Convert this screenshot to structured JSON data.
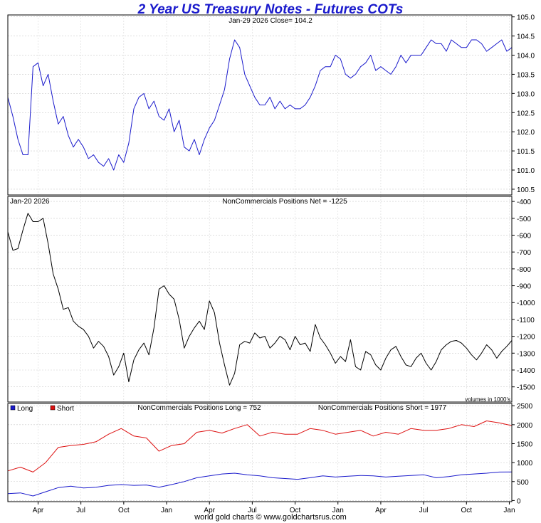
{
  "title": "2 Year US Treasury Notes - Futures COTs",
  "footer": "world gold charts © www.goldchartsrus.com",
  "chart_data": [
    {
      "type": "line",
      "panel": "price",
      "header": "Jan-29  2026   Close= 104.2",
      "ylim": [
        100.35,
        105.05
      ],
      "yticks": [
        105.0,
        104.5,
        104.0,
        103.5,
        103.0,
        102.5,
        102.0,
        101.5,
        101.0,
        100.5
      ],
      "ytick_labels": [
        "105.0",
        "104.5",
        "104.0",
        "103.5",
        "103.0",
        "102.5",
        "102.0",
        "101.5",
        "101.0",
        "100.5"
      ],
      "color": "#1a1acc",
      "x": [
        0,
        0.01,
        0.02,
        0.03,
        0.04,
        0.05,
        0.06,
        0.07,
        0.08,
        0.09,
        0.1,
        0.11,
        0.12,
        0.13,
        0.14,
        0.15,
        0.16,
        0.17,
        0.18,
        0.19,
        0.2,
        0.21,
        0.22,
        0.23,
        0.24,
        0.25,
        0.26,
        0.27,
        0.28,
        0.29,
        0.3,
        0.31,
        0.32,
        0.33,
        0.34,
        0.35,
        0.36,
        0.37,
        0.38,
        0.39,
        0.4,
        0.41,
        0.42,
        0.43,
        0.44,
        0.45,
        0.46,
        0.47,
        0.48,
        0.49,
        0.5,
        0.51,
        0.52,
        0.53,
        0.54,
        0.55,
        0.56,
        0.57,
        0.58,
        0.59,
        0.6,
        0.61,
        0.62,
        0.63,
        0.64,
        0.65,
        0.66,
        0.67,
        0.68,
        0.69,
        0.7,
        0.71,
        0.72,
        0.73,
        0.74,
        0.75,
        0.76,
        0.77,
        0.78,
        0.79,
        0.8,
        0.81,
        0.82,
        0.83,
        0.84,
        0.85,
        0.86,
        0.87,
        0.88,
        0.89,
        0.9,
        0.91,
        0.92,
        0.93,
        0.94,
        0.95,
        0.96,
        0.97,
        0.98,
        0.99,
        1.0
      ],
      "values": [
        102.9,
        102.4,
        101.8,
        101.4,
        101.4,
        103.7,
        103.8,
        103.2,
        103.5,
        102.8,
        102.2,
        102.4,
        101.9,
        101.6,
        101.8,
        101.6,
        101.3,
        101.4,
        101.2,
        101.1,
        101.3,
        101.0,
        101.4,
        101.2,
        101.7,
        102.6,
        102.9,
        103.0,
        102.6,
        102.8,
        102.4,
        102.3,
        102.6,
        102.0,
        102.3,
        101.6,
        101.5,
        101.8,
        101.4,
        101.8,
        102.1,
        102.3,
        102.7,
        103.1,
        103.9,
        104.4,
        104.2,
        103.5,
        103.2,
        102.9,
        102.7,
        102.7,
        102.9,
        102.6,
        102.8,
        102.6,
        102.7,
        102.6,
        102.6,
        102.7,
        102.9,
        103.2,
        103.6,
        103.7,
        103.7,
        104.0,
        103.9,
        103.5,
        103.4,
        103.5,
        103.7,
        103.8,
        104.0,
        103.6,
        103.7,
        103.6,
        103.5,
        103.7,
        104.0,
        103.8,
        104.0,
        104.0,
        104.0,
        104.2,
        104.4,
        104.3,
        104.3,
        104.1,
        104.4,
        104.3,
        104.2,
        104.2,
        104.4,
        104.4,
        104.3,
        104.1,
        104.2,
        104.3,
        104.4,
        104.1,
        104.2
      ]
    },
    {
      "type": "line",
      "panel": "net",
      "header_left": "Jan-20  2026",
      "header": "NonCommercials Positions Net = -1225",
      "note": "volumes in 1000's",
      "ylim": [
        -1590,
        -370
      ],
      "yticks": [
        -400,
        -500,
        -600,
        -700,
        -800,
        -900,
        -1000,
        -1100,
        -1200,
        -1300,
        -1400,
        -1500
      ],
      "ytick_labels": [
        "-400",
        "-500",
        "-600",
        "-700",
        "-800",
        "-900",
        "-1000",
        "-1100",
        "-1200",
        "-1300",
        "-1400",
        "-1500"
      ],
      "color": "#000000",
      "x": [
        0,
        0.01,
        0.02,
        0.03,
        0.04,
        0.05,
        0.06,
        0.07,
        0.08,
        0.09,
        0.1,
        0.11,
        0.12,
        0.13,
        0.14,
        0.15,
        0.16,
        0.17,
        0.18,
        0.19,
        0.2,
        0.21,
        0.22,
        0.23,
        0.24,
        0.25,
        0.26,
        0.27,
        0.28,
        0.29,
        0.3,
        0.31,
        0.32,
        0.33,
        0.34,
        0.35,
        0.36,
        0.37,
        0.38,
        0.39,
        0.4,
        0.41,
        0.42,
        0.43,
        0.44,
        0.45,
        0.46,
        0.47,
        0.48,
        0.49,
        0.5,
        0.51,
        0.52,
        0.53,
        0.54,
        0.55,
        0.56,
        0.57,
        0.58,
        0.59,
        0.6,
        0.61,
        0.62,
        0.63,
        0.64,
        0.65,
        0.66,
        0.67,
        0.68,
        0.69,
        0.7,
        0.71,
        0.72,
        0.73,
        0.74,
        0.75,
        0.76,
        0.77,
        0.78,
        0.79,
        0.8,
        0.81,
        0.82,
        0.83,
        0.84,
        0.85,
        0.86,
        0.87,
        0.88,
        0.89,
        0.9,
        0.91,
        0.92,
        0.93,
        0.94,
        0.95,
        0.96,
        0.97,
        0.98,
        0.99,
        1.0
      ],
      "values": [
        -580,
        -690,
        -680,
        -570,
        -470,
        -520,
        -520,
        -500,
        -650,
        -830,
        -920,
        -1040,
        -1030,
        -1110,
        -1140,
        -1160,
        -1200,
        -1270,
        -1230,
        -1260,
        -1320,
        -1430,
        -1380,
        -1300,
        -1470,
        -1340,
        -1280,
        -1240,
        -1310,
        -1150,
        -920,
        -900,
        -950,
        -980,
        -1100,
        -1270,
        -1200,
        -1150,
        -1110,
        -1160,
        -990,
        -1060,
        -1240,
        -1370,
        -1490,
        -1420,
        -1250,
        -1230,
        -1240,
        -1180,
        -1210,
        -1200,
        -1270,
        -1240,
        -1200,
        -1220,
        -1280,
        -1200,
        -1250,
        -1240,
        -1290,
        -1130,
        -1210,
        -1250,
        -1300,
        -1360,
        -1320,
        -1350,
        -1220,
        -1380,
        -1400,
        -1290,
        -1310,
        -1370,
        -1400,
        -1330,
        -1280,
        -1260,
        -1320,
        -1370,
        -1380,
        -1330,
        -1300,
        -1360,
        -1400,
        -1350,
        -1280,
        -1250,
        -1230,
        -1225,
        -1240,
        -1270,
        -1310,
        -1340,
        -1300,
        -1250,
        -1280,
        -1330,
        -1290,
        -1260,
        -1225
      ]
    },
    {
      "type": "line",
      "panel": "long-short",
      "header": "NonCommercials Positions Long = 752",
      "header_right": "NonCommercials Positions Short = 1977",
      "legend": [
        {
          "name": "Long",
          "color": "#1a1acc"
        },
        {
          "name": "Short",
          "color": "#dd1111"
        }
      ],
      "ylim": [
        -30,
        2560
      ],
      "yticks": [
        2500,
        2000,
        1500,
        1000,
        500,
        0
      ],
      "ytick_labels": [
        "2500",
        "2000",
        "1500",
        "1000",
        "500",
        "0"
      ],
      "xtick_labels": [
        "Apr",
        "Jul",
        "Oct",
        "Jan",
        "Apr",
        "Jul",
        "Oct",
        "Jan",
        "Apr",
        "Jul",
        "Oct",
        "Jan"
      ],
      "xtick_positions": [
        0.06,
        0.145,
        0.23,
        0.315,
        0.4,
        0.485,
        0.57,
        0.655,
        0.74,
        0.825,
        0.91,
        0.995
      ],
      "x": [
        0,
        0.025,
        0.05,
        0.075,
        0.1,
        0.125,
        0.15,
        0.175,
        0.2,
        0.225,
        0.25,
        0.275,
        0.3,
        0.325,
        0.35,
        0.375,
        0.4,
        0.425,
        0.45,
        0.475,
        0.5,
        0.525,
        0.55,
        0.575,
        0.6,
        0.625,
        0.65,
        0.675,
        0.7,
        0.725,
        0.75,
        0.775,
        0.8,
        0.825,
        0.85,
        0.875,
        0.9,
        0.925,
        0.95,
        0.975,
        1.0
      ],
      "series": [
        {
          "name": "Long",
          "color": "#1a1acc",
          "values": [
            180,
            200,
            120,
            230,
            340,
            380,
            330,
            350,
            400,
            420,
            400,
            410,
            350,
            420,
            500,
            600,
            650,
            700,
            720,
            680,
            650,
            600,
            580,
            560,
            600,
            650,
            620,
            640,
            660,
            650,
            620,
            640,
            660,
            680,
            600,
            630,
            680,
            700,
            720,
            750,
            752
          ]
        },
        {
          "name": "Short",
          "color": "#dd1111",
          "values": [
            780,
            880,
            750,
            1000,
            1400,
            1450,
            1480,
            1550,
            1750,
            1900,
            1700,
            1650,
            1300,
            1450,
            1500,
            1800,
            1850,
            1780,
            1900,
            2000,
            1700,
            1800,
            1750,
            1750,
            1900,
            1850,
            1750,
            1800,
            1850,
            1700,
            1800,
            1750,
            1900,
            1850,
            1850,
            1900,
            2000,
            1950,
            2100,
            2050,
            1977
          ]
        }
      ]
    }
  ]
}
